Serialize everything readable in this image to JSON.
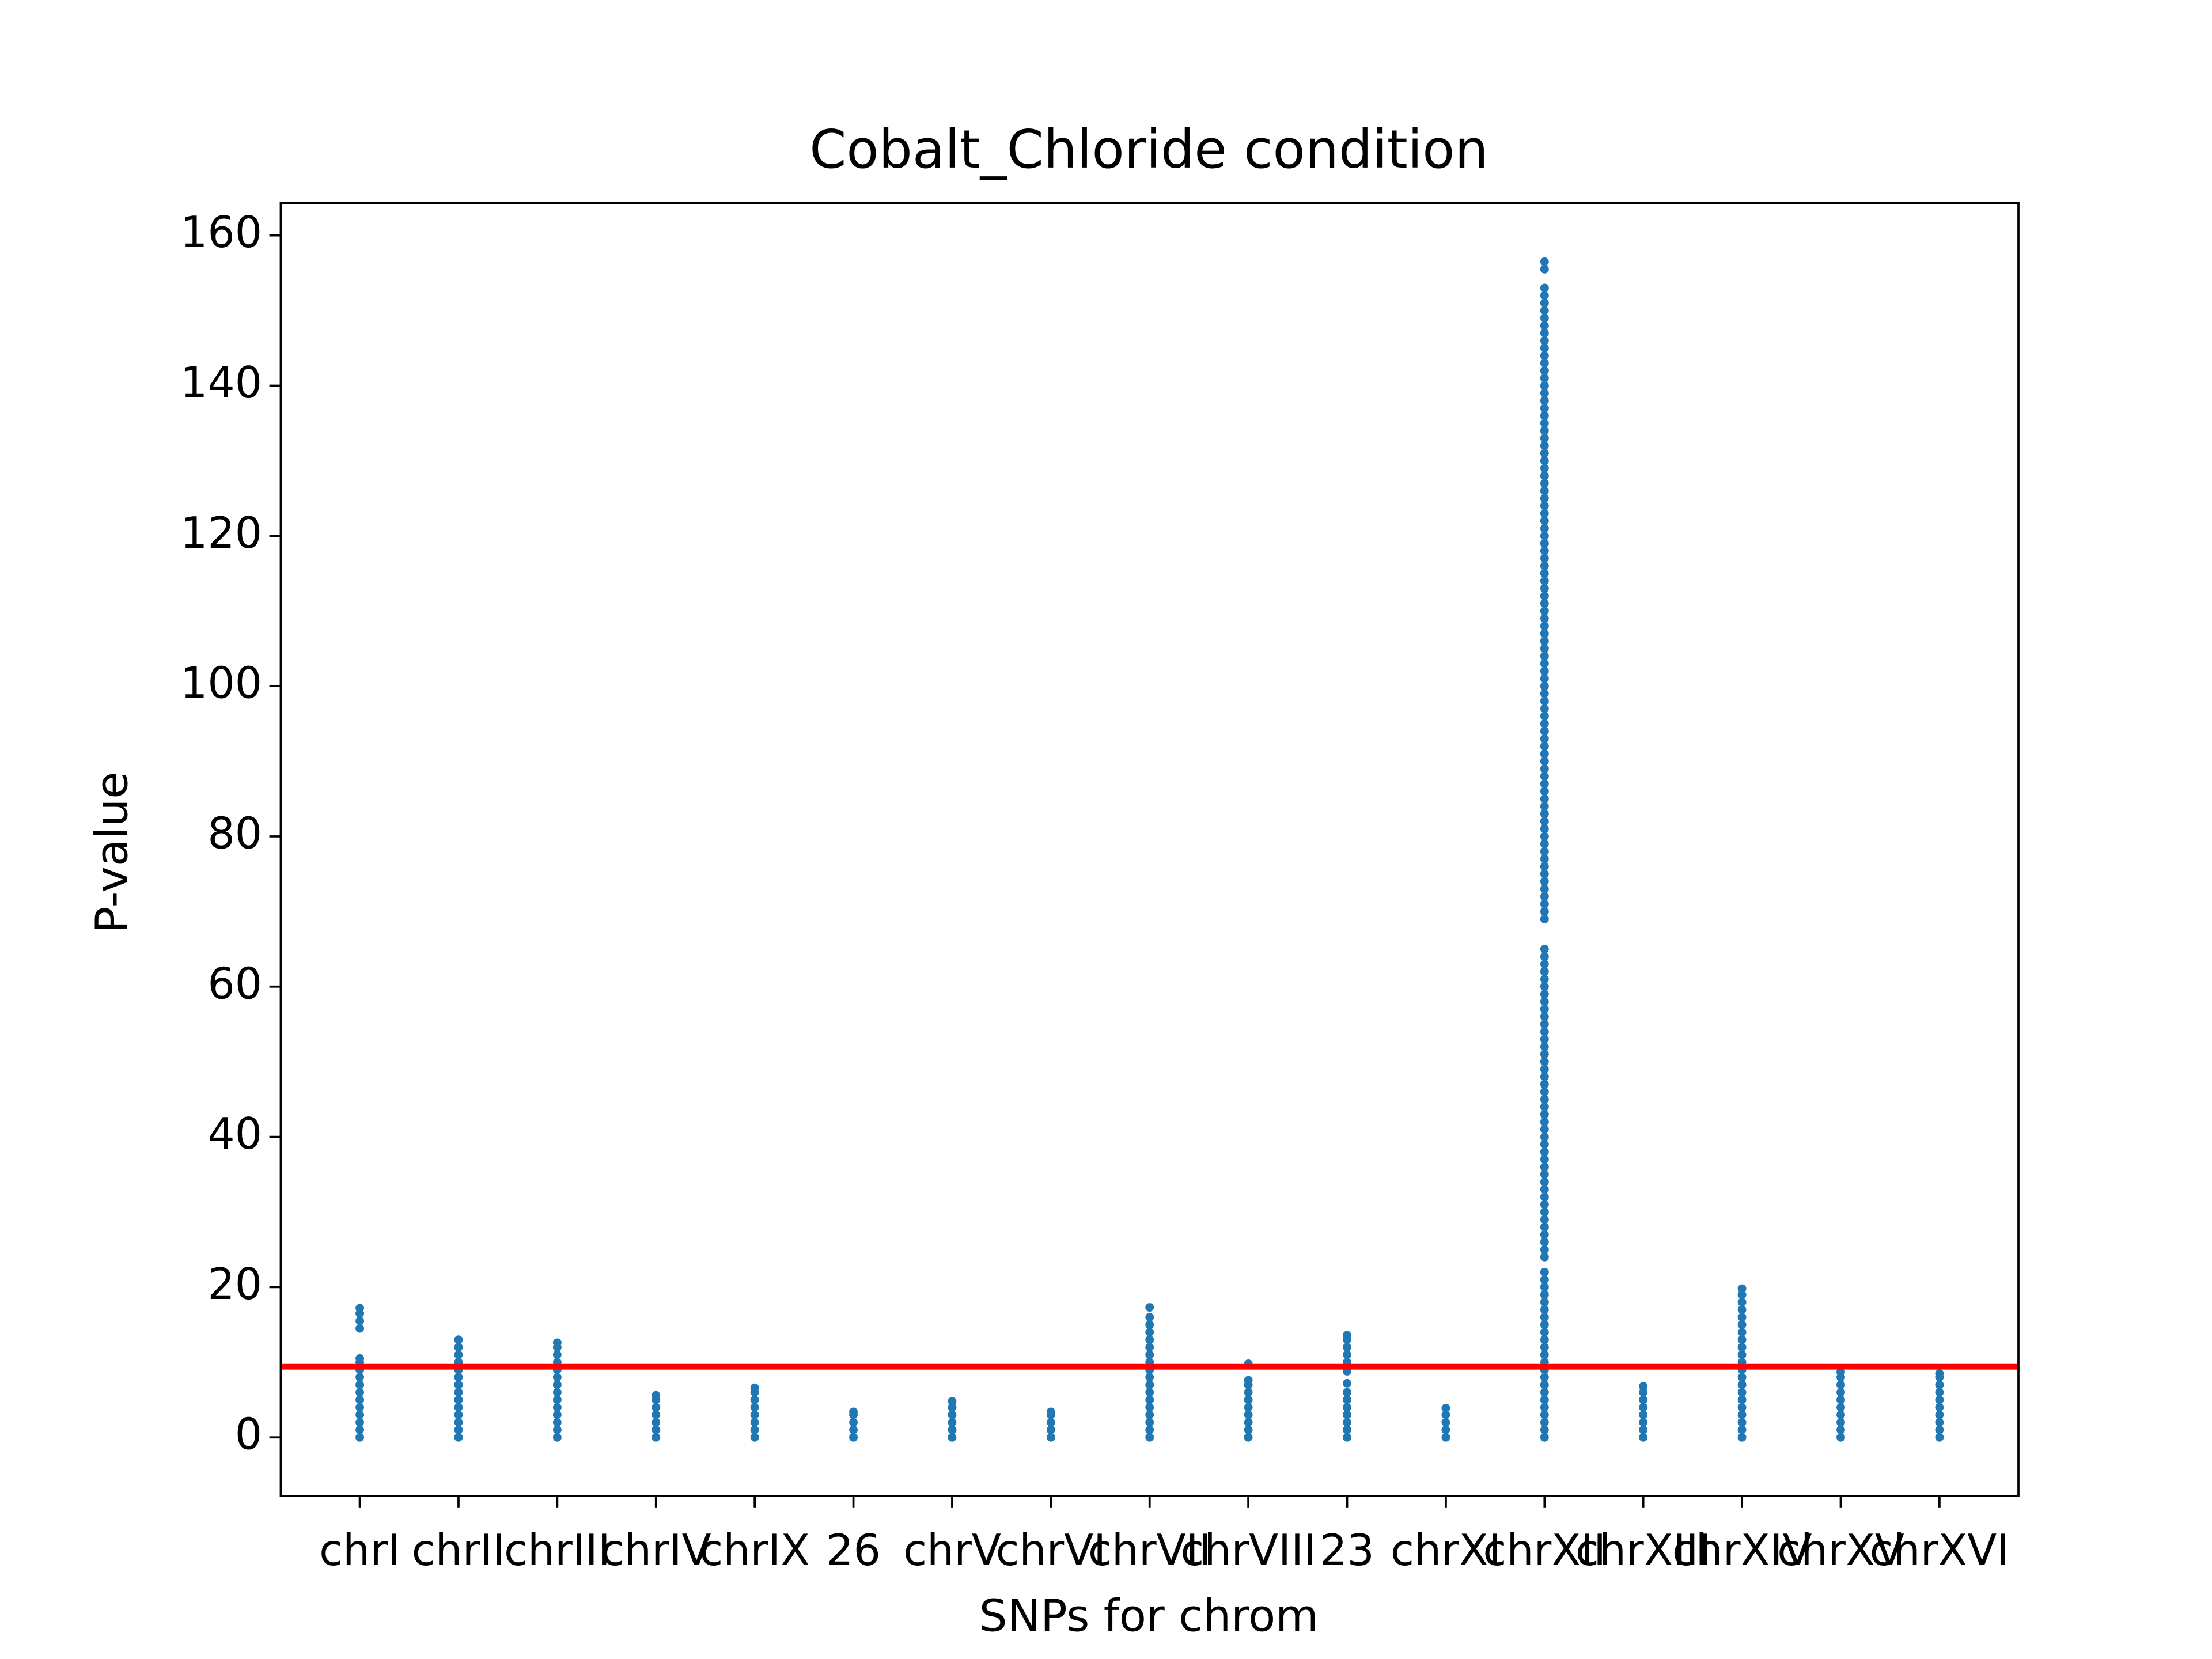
{
  "chart_data": {
    "type": "strip",
    "title": "Cobalt_Chloride condition",
    "x_label": "SNPs for chrom",
    "y_label": "P-value",
    "categories": [
      "chrI",
      "chrII",
      "chrIII",
      "chrIV",
      "chrIX",
      "26",
      "chrV",
      "chrVI",
      "chrVII",
      "chrVIII",
      "23",
      "chrXI",
      "chrXII",
      "chrXIII",
      "chrXIV",
      "chrXV",
      "chrXVI"
    ],
    "color": "#1f77b4",
    "values": [
      [
        0,
        1,
        2,
        3,
        4,
        5,
        6,
        7,
        8,
        9,
        10,
        10.5,
        14.5,
        15.5,
        16.5,
        17.2
      ],
      [
        0,
        1,
        2,
        3,
        4,
        5,
        6,
        7,
        8,
        9,
        10,
        11,
        12,
        13
      ],
      [
        0,
        1,
        2,
        3,
        4,
        5,
        6,
        7,
        8,
        9,
        10,
        11,
        12,
        12.6
      ],
      [
        0,
        1,
        2,
        3,
        4,
        5,
        5.6
      ],
      [
        0,
        1,
        2,
        3,
        4,
        5,
        6,
        6.6
      ],
      [
        0,
        1,
        2,
        3,
        3.4
      ],
      [
        0,
        1,
        2,
        3,
        4,
        4.8
      ],
      [
        0,
        1,
        2,
        3,
        3.4
      ],
      [
        0,
        1,
        2,
        3,
        4,
        5,
        6,
        7,
        8,
        9,
        10,
        11,
        12,
        13,
        14,
        15,
        16,
        17.3
      ],
      [
        0,
        1,
        2,
        3,
        4,
        5,
        6,
        7,
        7.6,
        9.8
      ],
      [
        0,
        1,
        2,
        3,
        4,
        5,
        6,
        7.2,
        8.8,
        10,
        11,
        12,
        13,
        13.6
      ],
      [
        0,
        1,
        2,
        3,
        3.9
      ],
      [
        0,
        1,
        2,
        3,
        4,
        5,
        6,
        7,
        8,
        9,
        10,
        11,
        12,
        13,
        14,
        15,
        16,
        17,
        18,
        19,
        20,
        21,
        22,
        24,
        25,
        26,
        27,
        28,
        29,
        30,
        31,
        32,
        33,
        34,
        35,
        36,
        37,
        38,
        39,
        40,
        41,
        42,
        43,
        44,
        45,
        46,
        47,
        48,
        49,
        50,
        51,
        52,
        53,
        54,
        55,
        56,
        57,
        58,
        59,
        60,
        61,
        62,
        63,
        64,
        65,
        69,
        70,
        71,
        72,
        73,
        74,
        75,
        76,
        77,
        78,
        79,
        80,
        81,
        82,
        83,
        84,
        85,
        86,
        87,
        88,
        89,
        90,
        91,
        92,
        93,
        94,
        95,
        96,
        97,
        98,
        99,
        100,
        101,
        102,
        103,
        104,
        105,
        106,
        107,
        108,
        109,
        110,
        111,
        112,
        113,
        114,
        115,
        116,
        117,
        118,
        119,
        120,
        121,
        122,
        123,
        124,
        125,
        126,
        127,
        128,
        129,
        130,
        131,
        132,
        133,
        134,
        135,
        136,
        137,
        138,
        139,
        140,
        141,
        142,
        143,
        144,
        145,
        146,
        147,
        148,
        149,
        150,
        151,
        152,
        153,
        155.5,
        156.5
      ],
      [
        0,
        1,
        2,
        3,
        4,
        5,
        6,
        6.8
      ],
      [
        0,
        1,
        2,
        3,
        4,
        5,
        6,
        7,
        8,
        9,
        10,
        11,
        12,
        13,
        14,
        15,
        16,
        17,
        18,
        19,
        19.8
      ],
      [
        0,
        1,
        2,
        3,
        4,
        5,
        6,
        7,
        8,
        8.7
      ],
      [
        0,
        1,
        2,
        3,
        4,
        5,
        6,
        7,
        8,
        8.5
      ]
    ],
    "threshold": 9.4,
    "threshold_color": "#ff0000",
    "ylim": [
      -7.8,
      164.3
    ],
    "yticks": [
      0,
      20,
      40,
      60,
      80,
      100,
      120,
      140,
      160
    ]
  }
}
